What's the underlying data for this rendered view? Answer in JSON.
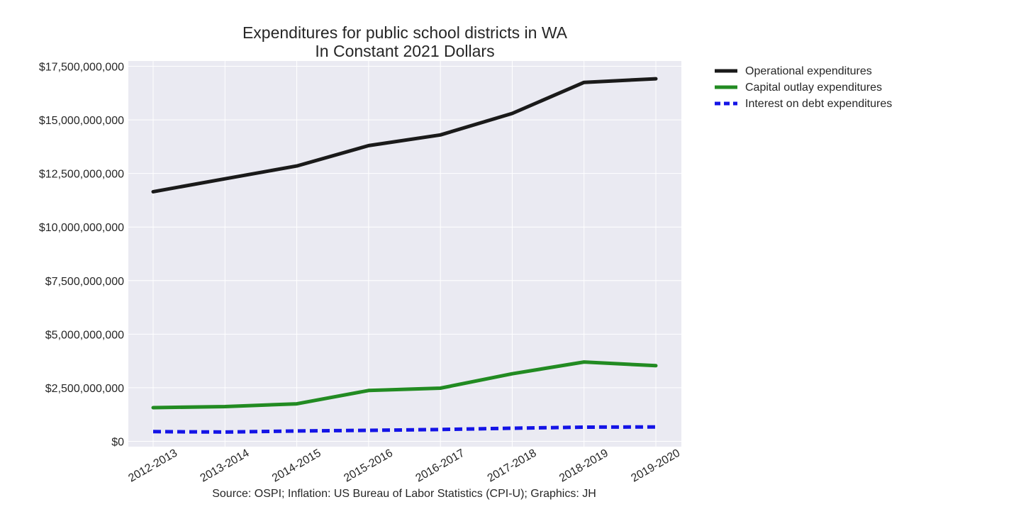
{
  "chart_data": {
    "type": "line",
    "title": "Expenditures for public school districts in WA",
    "subtitle": "In Constant 2021 Dollars",
    "xlabel": "",
    "ylabel": "",
    "caption": "Source: OSPI; Inflation: US Bureau of Labor Statistics (CPI-U); Graphics: JH",
    "categories": [
      "2012-2013",
      "2013-2014",
      "2014-2015",
      "2015-2016",
      "2016-2017",
      "2017-2018",
      "2018-2019",
      "2019-2020"
    ],
    "ylim": [
      -250000000,
      17750000000
    ],
    "yticks": [
      0,
      2500000000,
      5000000000,
      7500000000,
      10000000000,
      12500000000,
      15000000000,
      17500000000
    ],
    "ytick_labels": [
      "$0",
      "$2,500,000,000",
      "$5,000,000,000",
      "$7,500,000,000",
      "$10,000,000,000",
      "$12,500,000,000",
      "$15,000,000,000",
      "$17,500,000,000"
    ],
    "grid": true,
    "legend_placement": "outside-top-right",
    "background_color": "#eaeaf2",
    "series": [
      {
        "name": "Operational expenditures",
        "color": "#1a1a1a",
        "style": "solid",
        "values": [
          11650000000,
          12250000000,
          12850000000,
          13800000000,
          14300000000,
          15300000000,
          16750000000,
          16920000000
        ]
      },
      {
        "name": "Capital outlay expenditures",
        "color": "#228b22",
        "style": "solid",
        "values": [
          1570000000,
          1620000000,
          1750000000,
          2370000000,
          2480000000,
          3150000000,
          3700000000,
          3530000000
        ]
      },
      {
        "name": "Interest on debt expenditures",
        "color": "#1414e6",
        "style": "dashed",
        "values": [
          450000000,
          430000000,
          480000000,
          510000000,
          550000000,
          610000000,
          660000000,
          670000000
        ]
      }
    ]
  }
}
